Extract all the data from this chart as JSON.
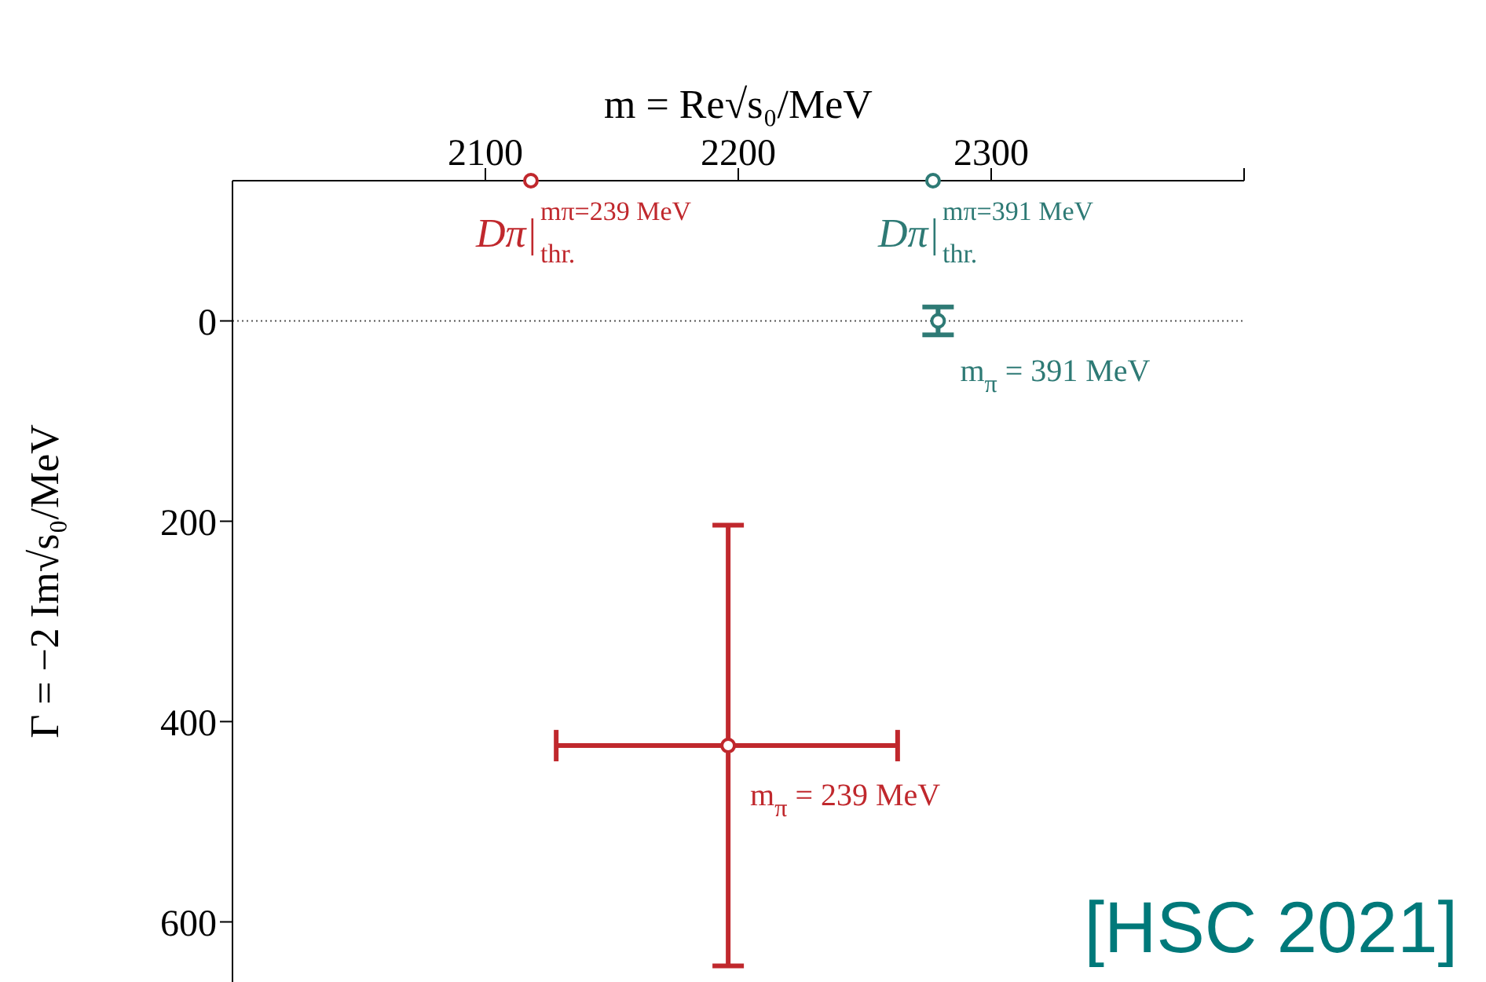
{
  "chart_data": {
    "type": "scatter",
    "xlabel": "m = Re√s₀/MeV",
    "ylabel": "Γ = −2 Im√s₀/MeV",
    "xlim": [
      2000,
      2400
    ],
    "xticks": [
      2100,
      2200,
      2300,
      {
        "value": 2400,
        "label": null
      }
    ],
    "ylim": [
      660,
      -140
    ],
    "yticks": [
      0,
      200,
      400,
      600
    ],
    "marker": "circle",
    "series": [
      {
        "name": "m$_{π}$ = 239 MeV",
        "color": "#c0282d",
        "x": [
          2196
        ],
        "values": [
          424
        ],
        "errors": [
          [
            204,
            644
          ]
        ],
        "xerrors": [
          [
            2128,
            2263
          ]
        ]
      },
      {
        "name": "m$_{π}$ = 391 MeV",
        "color": "#2e7a75",
        "x": [
          2279
        ],
        "values": [
          0
        ],
        "errors": [
          [
            -14,
            14
          ]
        ]
      },
      {
        "name": "Dπ|$^{mπ=239 MeV}$$_{thr.}$",
        "color": "#c0282d",
        "x": [
          2118
        ],
        "values": [
          -140
        ]
      },
      {
        "name": "Dπ|$^{mπ=391 MeV}$$_{thr.}$",
        "color": "#2e7a75",
        "x": [
          2277
        ],
        "values": [
          -140
        ]
      }
    ],
    "ref_lines": [
      {
        "axis": "y",
        "value": 0,
        "color": "#555555",
        "line_style": "dotted"
      }
    ],
    "annotations": [
      "[HSC 2021]"
    ]
  }
}
